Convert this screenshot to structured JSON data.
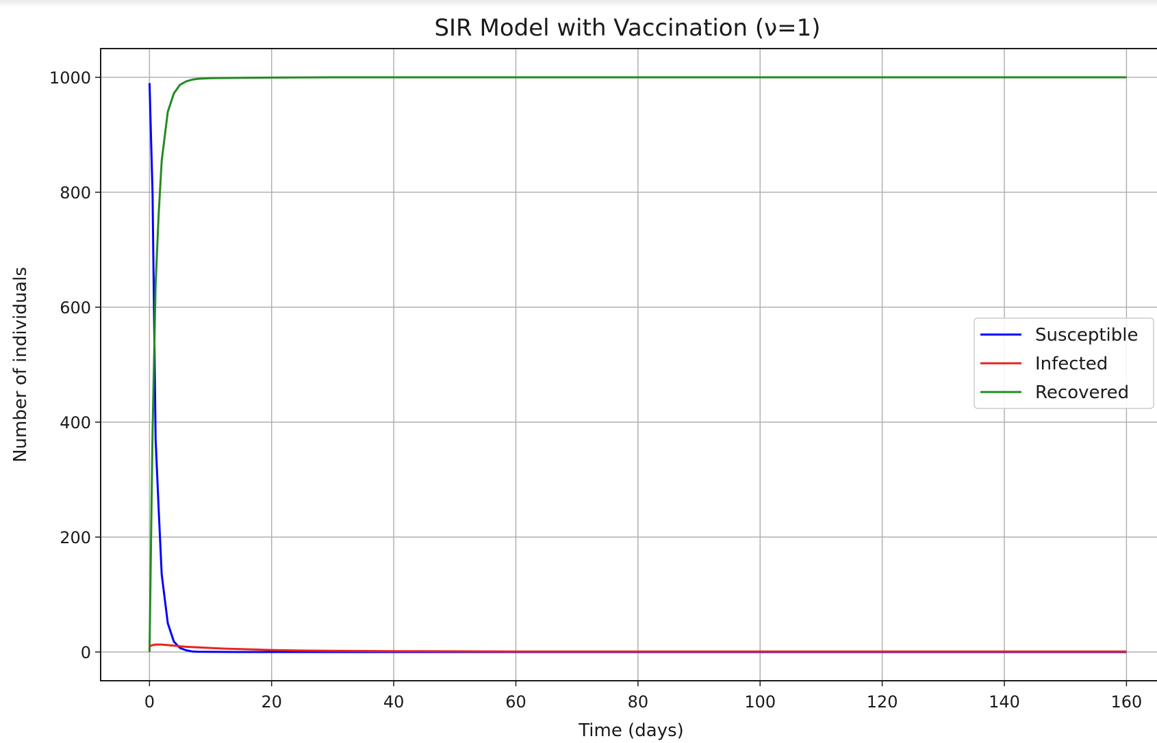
{
  "chart_data": {
    "type": "line",
    "title": "SIR Model with Vaccination (ν=1)",
    "xlabel": "Time (days)",
    "ylabel": "Number of individuals",
    "xlim": [
      -8,
      165
    ],
    "ylim": [
      -50,
      1050
    ],
    "xticks": [
      0,
      20,
      40,
      60,
      80,
      100,
      120,
      140,
      160
    ],
    "yticks": [
      0,
      200,
      400,
      600,
      800,
      1000
    ],
    "grid": true,
    "legend_position": "center-right",
    "series": [
      {
        "name": "Susceptible",
        "color": "#0000ff",
        "x": [
          0,
          0.5,
          1,
          1.5,
          2,
          3,
          4,
          5,
          6,
          7,
          8,
          10,
          15,
          20,
          40,
          80,
          120,
          160
        ],
        "y": [
          990,
          800,
          370,
          250,
          135,
          50,
          18,
          7,
          3,
          1,
          0.5,
          0.2,
          0,
          0,
          0,
          0,
          0,
          0
        ]
      },
      {
        "name": "Infected",
        "color": "#e8231c",
        "x": [
          0,
          0.5,
          1,
          2,
          3,
          4,
          5,
          6,
          8,
          10,
          12,
          15,
          20,
          25,
          30,
          40,
          60,
          80,
          120,
          160
        ],
        "y": [
          10,
          12,
          13,
          13,
          12,
          11,
          10,
          9,
          8,
          7,
          6,
          5,
          3.5,
          2.5,
          2,
          1.5,
          1,
          1,
          1,
          1
        ]
      },
      {
        "name": "Recovered",
        "color": "#228b22",
        "x": [
          0,
          0.5,
          1,
          1.5,
          2,
          3,
          4,
          5,
          6,
          7,
          8,
          10,
          15,
          20,
          30,
          40,
          80,
          120,
          160
        ],
        "y": [
          0,
          380,
          640,
          760,
          855,
          940,
          972,
          987,
          993,
          996,
          997.5,
          998.5,
          999,
          999.5,
          1000,
          1000,
          1000,
          1000,
          1000
        ]
      }
    ]
  }
}
